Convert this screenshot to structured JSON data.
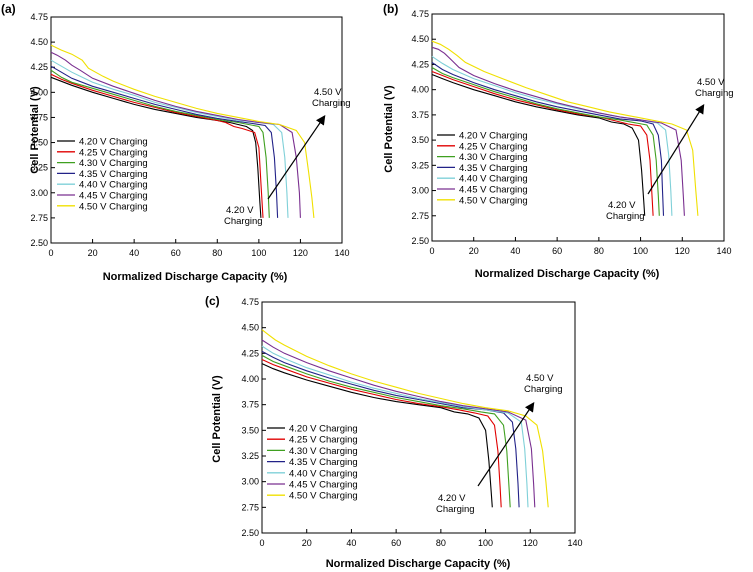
{
  "chart_data": [
    {
      "type": "line",
      "panel_label": "(a)",
      "xlabel": "Normalized Discharge Capacity (%)",
      "ylabel": "Cell Potential (V)",
      "xlim": [
        0,
        140
      ],
      "ylim": [
        2.5,
        4.75
      ],
      "xticks": [
        "0",
        "20",
        "40",
        "60",
        "80",
        "100",
        "120",
        "140"
      ],
      "yticks": [
        "2.50",
        "2.75",
        "3.00",
        "3.25",
        "3.50",
        "3.75",
        "4.00",
        "4.25",
        "4.50",
        "4.75"
      ],
      "legend_position": "lower-left",
      "annotations": {
        "low": [
          "4.20 V",
          "Charging"
        ],
        "high": [
          "4.50 V",
          "Charging"
        ]
      },
      "series": [
        {
          "name": "4.20 V Charging",
          "color": "#000000",
          "x": [
            0,
            5,
            10,
            20,
            30,
            40,
            50,
            60,
            70,
            80,
            86,
            90,
            94,
            97,
            98.5,
            99.5,
            100.5,
            101
          ],
          "y": [
            4.15,
            4.11,
            4.07,
            4.0,
            3.94,
            3.88,
            3.83,
            3.79,
            3.75,
            3.72,
            3.7,
            3.68,
            3.66,
            3.62,
            3.5,
            3.25,
            2.9,
            2.75
          ]
        },
        {
          "name": "4.25 V Charging",
          "color": "#e00000",
          "x": [
            0,
            5,
            10,
            20,
            30,
            40,
            50,
            60,
            70,
            80,
            84,
            88,
            92,
            95,
            98,
            100,
            101,
            102
          ],
          "y": [
            4.18,
            4.13,
            4.09,
            4.02,
            3.96,
            3.9,
            3.85,
            3.8,
            3.76,
            3.72,
            3.7,
            3.66,
            3.64,
            3.62,
            3.6,
            3.45,
            3.1,
            2.75
          ]
        },
        {
          "name": "4.30 V Charging",
          "color": "#3fa020",
          "x": [
            0,
            5,
            10,
            20,
            30,
            40,
            50,
            60,
            70,
            80,
            90,
            95,
            100,
            102,
            103.5,
            104.5,
            105
          ],
          "y": [
            4.22,
            4.15,
            4.1,
            4.04,
            3.98,
            3.92,
            3.86,
            3.81,
            3.77,
            3.73,
            3.7,
            3.68,
            3.66,
            3.6,
            3.35,
            3.0,
            2.75
          ]
        },
        {
          "name": "4.35 V Charging",
          "color": "#222288",
          "x": [
            0,
            5,
            10,
            20,
            30,
            40,
            50,
            60,
            70,
            80,
            90,
            97,
            103,
            106,
            107.5,
            108.5,
            109
          ],
          "y": [
            4.26,
            4.2,
            4.14,
            4.06,
            4.0,
            3.94,
            3.88,
            3.83,
            3.78,
            3.74,
            3.71,
            3.69,
            3.67,
            3.6,
            3.35,
            3.0,
            2.75
          ]
        },
        {
          "name": "4.40 V Charging",
          "color": "#7fd0d8",
          "x": [
            0,
            5,
            10,
            20,
            30,
            40,
            50,
            60,
            70,
            80,
            90,
            100,
            107,
            111,
            112.5,
            113.5,
            114
          ],
          "y": [
            4.32,
            4.26,
            4.2,
            4.1,
            4.03,
            3.97,
            3.9,
            3.85,
            3.8,
            3.76,
            3.72,
            3.7,
            3.68,
            3.6,
            3.35,
            3.0,
            2.75
          ]
        },
        {
          "name": "4.45 V Charging",
          "color": "#7a3090",
          "x": [
            0,
            3,
            7,
            10,
            14,
            20,
            30,
            40,
            50,
            60,
            70,
            80,
            90,
            100,
            110,
            116,
            118,
            119.5,
            120
          ],
          "y": [
            4.4,
            4.37,
            4.32,
            4.27,
            4.22,
            4.14,
            4.06,
            3.99,
            3.92,
            3.86,
            3.81,
            3.77,
            3.73,
            3.7,
            3.68,
            3.6,
            3.35,
            3.0,
            2.75
          ]
        },
        {
          "name": "4.50 V Charging",
          "color": "#f0e000",
          "x": [
            0,
            5,
            10,
            15,
            18,
            25,
            30,
            40,
            50,
            60,
            70,
            80,
            90,
            100,
            110,
            118,
            122,
            124,
            125.5,
            126.5
          ],
          "y": [
            4.47,
            4.42,
            4.38,
            4.32,
            4.24,
            4.16,
            4.11,
            4.03,
            3.96,
            3.9,
            3.84,
            3.79,
            3.75,
            3.71,
            3.68,
            3.62,
            3.5,
            3.2,
            2.95,
            2.75
          ]
        }
      ]
    },
    {
      "type": "line",
      "panel_label": "(b)",
      "xlabel": "Normalized Discharge Capacity (%)",
      "ylabel": "Cell Potential (V)",
      "xlim": [
        0,
        140
      ],
      "ylim": [
        2.5,
        4.75
      ],
      "xticks": [
        "0",
        "20",
        "40",
        "60",
        "80",
        "100",
        "120",
        "140"
      ],
      "yticks": [
        "2.50",
        "2.75",
        "3.00",
        "3.25",
        "3.50",
        "3.75",
        "4.00",
        "4.25",
        "4.50",
        "4.75"
      ],
      "legend_position": "lower-left",
      "annotations": {
        "low": [
          "4.20 V",
          "Charging"
        ],
        "high": [
          "4.50 V",
          "Charging"
        ]
      },
      "series": [
        {
          "name": "4.20 V Charging",
          "color": "#000000",
          "x": [
            0,
            5,
            10,
            20,
            30,
            40,
            50,
            60,
            70,
            80,
            86,
            92,
            96,
            99,
            100.5,
            101.5,
            102
          ],
          "y": [
            4.15,
            4.11,
            4.07,
            4.0,
            3.94,
            3.88,
            3.83,
            3.79,
            3.75,
            3.72,
            3.68,
            3.66,
            3.62,
            3.5,
            3.2,
            2.9,
            2.75
          ]
        },
        {
          "name": "4.25 V Charging",
          "color": "#e00000",
          "x": [
            0,
            5,
            10,
            20,
            30,
            40,
            50,
            60,
            70,
            80,
            88,
            94,
            100,
            103,
            104.5,
            105.5,
            106
          ],
          "y": [
            4.18,
            4.14,
            4.1,
            4.03,
            3.96,
            3.9,
            3.85,
            3.8,
            3.76,
            3.73,
            3.69,
            3.66,
            3.64,
            3.55,
            3.3,
            2.95,
            2.75
          ]
        },
        {
          "name": "4.30 V Charging",
          "color": "#3fa020",
          "x": [
            0,
            5,
            10,
            20,
            30,
            40,
            50,
            60,
            70,
            80,
            90,
            98,
            103,
            106,
            107.5,
            108.5,
            109
          ],
          "y": [
            4.22,
            4.16,
            4.12,
            4.05,
            3.98,
            3.92,
            3.86,
            3.81,
            3.77,
            3.73,
            3.7,
            3.67,
            3.65,
            3.55,
            3.3,
            2.95,
            2.75
          ]
        },
        {
          "name": "4.35 V Charging",
          "color": "#222288",
          "x": [
            0,
            5,
            10,
            20,
            30,
            40,
            50,
            60,
            70,
            80,
            90,
            100,
            106,
            108.5,
            110,
            110.5,
            111
          ],
          "y": [
            4.27,
            4.2,
            4.15,
            4.07,
            4.0,
            3.94,
            3.88,
            3.83,
            3.79,
            3.75,
            3.71,
            3.69,
            3.66,
            3.55,
            3.3,
            3.0,
            2.75
          ]
        },
        {
          "name": "4.40 V Charging",
          "color": "#7fd0d8",
          "x": [
            0,
            5,
            10,
            20,
            30,
            40,
            50,
            60,
            70,
            80,
            90,
            100,
            108,
            112,
            113.5,
            114.5,
            115
          ],
          "y": [
            4.33,
            4.26,
            4.2,
            4.11,
            4.04,
            3.97,
            3.91,
            3.86,
            3.81,
            3.77,
            3.73,
            3.7,
            3.67,
            3.6,
            3.35,
            3.0,
            2.75
          ]
        },
        {
          "name": "4.45 V Charging",
          "color": "#7a3090",
          "x": [
            0,
            3,
            6,
            9,
            13,
            20,
            30,
            40,
            50,
            60,
            70,
            80,
            90,
            100,
            110,
            117,
            119.5,
            120.5,
            121
          ],
          "y": [
            4.42,
            4.4,
            4.36,
            4.3,
            4.22,
            4.14,
            4.06,
            3.99,
            3.93,
            3.87,
            3.82,
            3.77,
            3.73,
            3.7,
            3.67,
            3.6,
            3.3,
            2.95,
            2.75
          ]
        },
        {
          "name": "4.50 V Charging",
          "color": "#f0e000",
          "x": [
            0,
            4,
            8,
            12,
            16,
            25,
            35,
            45,
            55,
            65,
            75,
            85,
            95,
            105,
            115,
            122,
            125,
            126.5,
            127.5
          ],
          "y": [
            4.48,
            4.45,
            4.4,
            4.34,
            4.27,
            4.18,
            4.1,
            4.02,
            3.95,
            3.88,
            3.83,
            3.78,
            3.74,
            3.7,
            3.66,
            3.6,
            3.4,
            3.0,
            2.75
          ]
        }
      ]
    },
    {
      "type": "line",
      "panel_label": "(c)",
      "xlabel": "Normalized Discharge Capacity (%)",
      "ylabel": "Cell Potential (V)",
      "xlim": [
        0,
        140
      ],
      "ylim": [
        2.5,
        4.75
      ],
      "xticks": [
        "0",
        "20",
        "40",
        "60",
        "80",
        "100",
        "120",
        "140"
      ],
      "yticks": [
        "2.50",
        "2.75",
        "3.00",
        "3.25",
        "3.50",
        "3.75",
        "4.00",
        "4.25",
        "4.50",
        "4.75"
      ],
      "legend_position": "lower-left",
      "annotations": {
        "low": [
          "4.20 V",
          "Charging"
        ],
        "high": [
          "4.50 V",
          "Charging"
        ]
      },
      "series": [
        {
          "name": "4.20 V Charging",
          "color": "#000000",
          "x": [
            0,
            5,
            10,
            20,
            30,
            40,
            50,
            60,
            70,
            80,
            86,
            92,
            97,
            100,
            101.5,
            102.5,
            103
          ],
          "y": [
            4.15,
            4.1,
            4.06,
            3.99,
            3.93,
            3.87,
            3.82,
            3.78,
            3.75,
            3.72,
            3.68,
            3.66,
            3.62,
            3.5,
            3.2,
            2.9,
            2.75
          ]
        },
        {
          "name": "4.25 V Charging",
          "color": "#e00000",
          "x": [
            0,
            5,
            10,
            20,
            30,
            40,
            50,
            60,
            70,
            80,
            88,
            95,
            101,
            104,
            105.5,
            106.5,
            107
          ],
          "y": [
            4.19,
            4.14,
            4.1,
            4.02,
            3.96,
            3.9,
            3.85,
            3.8,
            3.76,
            3.73,
            3.7,
            3.67,
            3.64,
            3.55,
            3.3,
            2.95,
            2.75
          ]
        },
        {
          "name": "4.30 V Charging",
          "color": "#3fa020",
          "x": [
            0,
            5,
            10,
            20,
            30,
            40,
            50,
            60,
            70,
            80,
            90,
            98,
            104,
            108,
            109.5,
            110.5,
            111
          ],
          "y": [
            4.23,
            4.17,
            4.13,
            4.05,
            3.98,
            3.92,
            3.87,
            3.82,
            3.78,
            3.74,
            3.71,
            3.68,
            3.66,
            3.55,
            3.3,
            2.95,
            2.75
          ]
        },
        {
          "name": "4.35 V Charging",
          "color": "#222288",
          "x": [
            0,
            5,
            10,
            20,
            30,
            40,
            50,
            60,
            70,
            80,
            90,
            100,
            108,
            112,
            113.5,
            114.5,
            115
          ],
          "y": [
            4.27,
            4.21,
            4.16,
            4.08,
            4.01,
            3.95,
            3.89,
            3.84,
            3.8,
            3.76,
            3.72,
            3.7,
            3.67,
            3.58,
            3.32,
            2.98,
            2.75
          ]
        },
        {
          "name": "4.40 V Charging",
          "color": "#7fd0d8",
          "x": [
            0,
            5,
            10,
            20,
            30,
            40,
            50,
            60,
            70,
            80,
            90,
            100,
            110,
            116,
            117.5,
            118.5,
            119
          ],
          "y": [
            4.32,
            4.25,
            4.2,
            4.11,
            4.04,
            3.97,
            3.91,
            3.86,
            3.81,
            3.77,
            3.73,
            3.7,
            3.67,
            3.58,
            3.32,
            2.98,
            2.75
          ]
        },
        {
          "name": "4.45 V Charging",
          "color": "#7a3090",
          "x": [
            0,
            5,
            10,
            20,
            30,
            40,
            50,
            60,
            70,
            80,
            90,
            100,
            110,
            118,
            120.5,
            121.5,
            122
          ],
          "y": [
            4.38,
            4.31,
            4.25,
            4.16,
            4.08,
            4.01,
            3.94,
            3.88,
            3.83,
            3.78,
            3.74,
            3.71,
            3.68,
            3.6,
            3.32,
            2.98,
            2.75
          ]
        },
        {
          "name": "4.50 V Charging",
          "color": "#f0e000",
          "x": [
            0,
            3,
            6,
            10,
            20,
            30,
            40,
            50,
            60,
            70,
            80,
            90,
            100,
            110,
            118,
            123,
            125.5,
            127,
            128
          ],
          "y": [
            4.48,
            4.43,
            4.38,
            4.33,
            4.22,
            4.13,
            4.05,
            3.98,
            3.92,
            3.86,
            3.81,
            3.76,
            3.72,
            3.69,
            3.64,
            3.55,
            3.3,
            3.0,
            2.75
          ]
        }
      ]
    }
  ]
}
